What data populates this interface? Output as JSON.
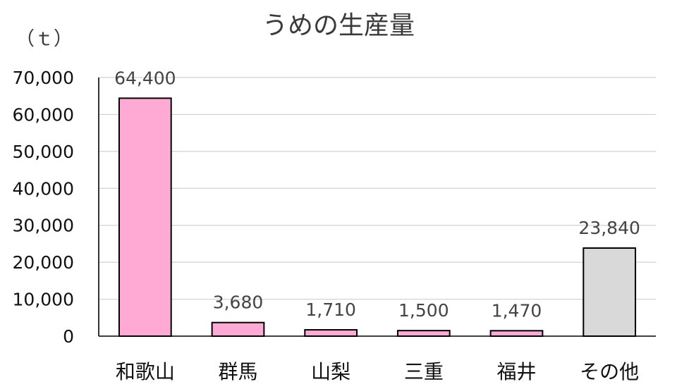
{
  "chart_data": {
    "type": "bar",
    "title": "うめの生産量",
    "unit_label": "（ｔ）",
    "categories": [
      "和歌山",
      "群馬",
      "山梨",
      "三重",
      "福井",
      "その他"
    ],
    "values": [
      64400,
      3680,
      1710,
      1500,
      1470,
      23840
    ],
    "data_labels": [
      "64,400",
      "3,680",
      "1,710",
      "1,500",
      "1,470",
      "23,840"
    ],
    "bar_colors": [
      "#ffaad4",
      "#ffaad4",
      "#ffaad4",
      "#ffaad4",
      "#ffaad4",
      "#d9d9d9"
    ],
    "ylim": [
      0,
      70000
    ],
    "yticks": [
      0,
      10000,
      20000,
      30000,
      40000,
      50000,
      60000,
      70000
    ],
    "ytick_labels": [
      "0",
      "10,000",
      "20,000",
      "30,000",
      "40,000",
      "50,000",
      "60,000",
      "70,000"
    ],
    "grid": true,
    "legend": "none"
  }
}
